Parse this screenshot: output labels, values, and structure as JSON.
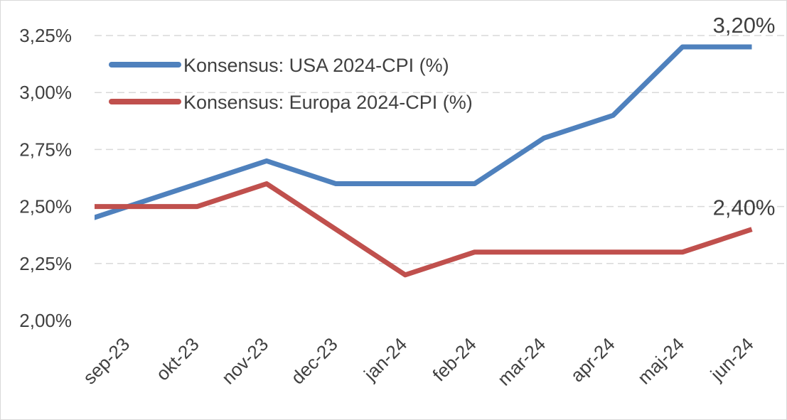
{
  "chart_data": {
    "type": "line",
    "title": "",
    "xlabel": "",
    "ylabel": "",
    "categories": [
      "sep-23",
      "okt-23",
      "nov-23",
      "dec-23",
      "jan-24",
      "feb-24",
      "mar-24",
      "apr-24",
      "maj-24",
      "jun-24"
    ],
    "series": [
      {
        "name": "Konsensus: USA 2024-CPI (%)",
        "color": "#4f81bd",
        "values": [
          2.5,
          2.6,
          2.7,
          2.6,
          2.6,
          2.6,
          2.8,
          2.9,
          3.2,
          3.2
        ],
        "end_label": "3,20%"
      },
      {
        "name": "Konsensus: Europa 2024-CPI (%)",
        "color": "#c0504d",
        "values": [
          2.5,
          2.5,
          2.6,
          2.4,
          2.2,
          2.3,
          2.3,
          2.3,
          2.3,
          2.4
        ],
        "end_label": "2,40%"
      }
    ],
    "ylim": [
      2.0,
      3.25
    ],
    "yticks": [
      {
        "value": 2.0,
        "label": "2,00%"
      },
      {
        "value": 2.25,
        "label": "2,25%"
      },
      {
        "value": 2.5,
        "label": "2,50%"
      },
      {
        "value": 2.75,
        "label": "2,75%"
      },
      {
        "value": 3.0,
        "label": "3,00%"
      },
      {
        "value": 3.25,
        "label": "3,25%"
      }
    ],
    "grid": true,
    "legend": "top-left"
  }
}
